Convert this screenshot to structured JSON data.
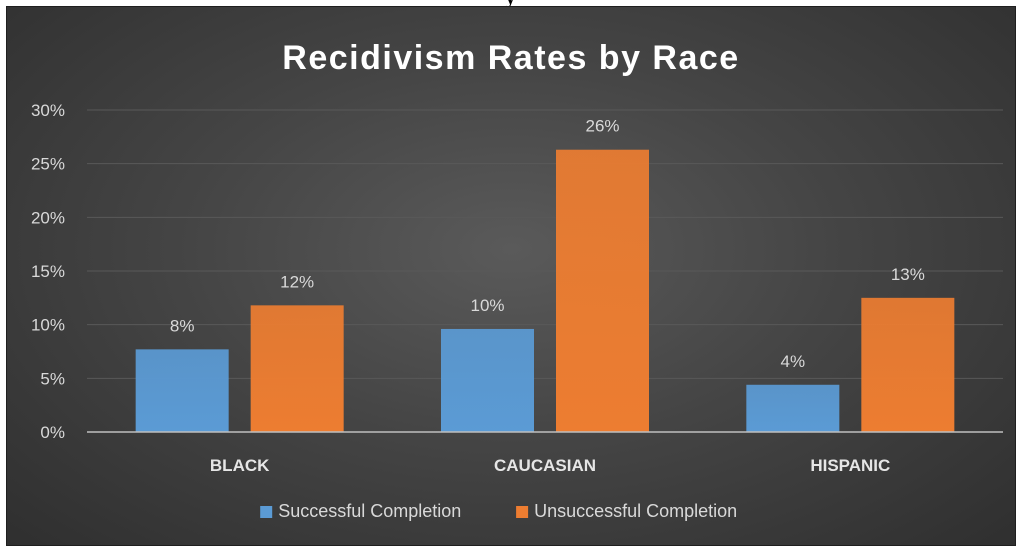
{
  "caption": "y",
  "colors": {
    "series_1": "#5b9bd5",
    "series_2": "#ed7d31",
    "background": "#404040",
    "gridline": "#595959",
    "axis": "#bfbfbf"
  },
  "chart_data": {
    "type": "bar",
    "title": "Recidivism Rates by Race",
    "categories": [
      "BLACK",
      "CAUCASIAN",
      "HISPANIC"
    ],
    "series": [
      {
        "name": "Successful Completion",
        "values": [
          7.7,
          9.6,
          4.4
        ],
        "labels": [
          "8%",
          "10%",
          "4%"
        ]
      },
      {
        "name": "Unsuccessful Completion",
        "values": [
          11.8,
          26.3,
          12.5
        ],
        "labels": [
          "12%",
          "26%",
          "13%"
        ]
      }
    ],
    "ylim": [
      0,
      30
    ],
    "yticks": [
      "0%",
      "5%",
      "10%",
      "15%",
      "20%",
      "25%",
      "30%"
    ],
    "grid": true,
    "legend_position": "bottom"
  }
}
